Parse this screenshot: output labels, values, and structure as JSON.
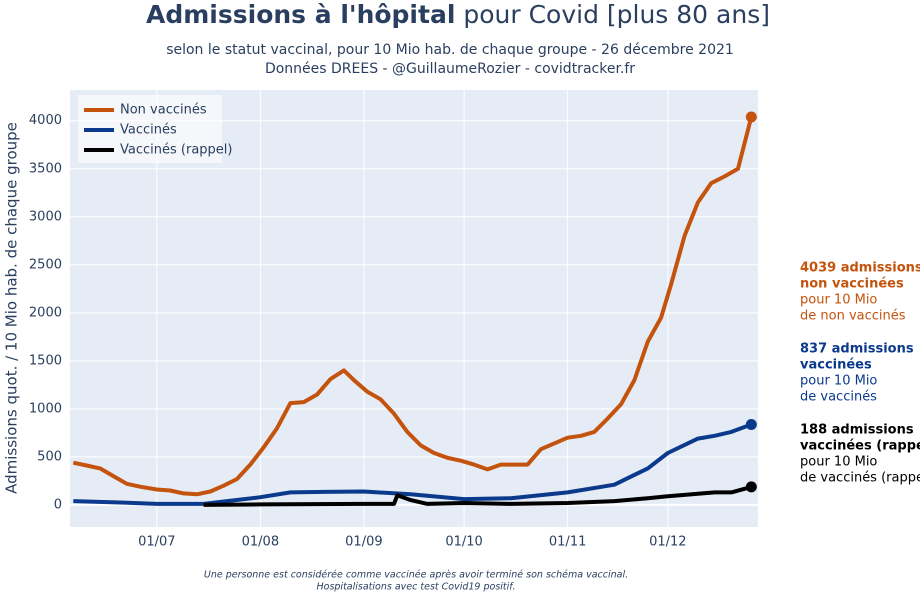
{
  "chart_data": {
    "type": "line",
    "title_bold": "Admissions à l'hôpital",
    "title_rest": "pour Covid [plus 80 ans]",
    "subtitle": [
      "selon le statut vaccinal, pour 10 Mio hab. de chaque groupe - 26 décembre 2021",
      "Données DREES - @GuillaumeRozier - covidtracker.fr"
    ],
    "y_label": "Admissions quot. / 10 Mio hab. de chaque groupe",
    "footnote": [
      "Une personne est considérée comme vaccinée après avoir terminé son schéma vaccinal.",
      "Hospitalisations avec test Covid19 positif."
    ],
    "xlim": [
      "05/06",
      "28/12"
    ],
    "xticks": [
      "01/07",
      "01/08",
      "01/09",
      "01/10",
      "01/11",
      "01/12"
    ],
    "ylim": [
      -230,
      4320
    ],
    "yticks": [
      0,
      500,
      1000,
      1500,
      2000,
      2500,
      3000,
      3500,
      4000
    ],
    "grid": true,
    "legend": "top-left",
    "series": [
      {
        "name": "Non vaccinés",
        "color": "#c4530d",
        "x": [
          "06/06",
          "10/06",
          "14/06",
          "18/06",
          "22/06",
          "26/06",
          "01/07",
          "05/07",
          "09/07",
          "13/07",
          "17/07",
          "21/07",
          "25/07",
          "29/07",
          "02/08",
          "06/08",
          "10/08",
          "14/08",
          "18/08",
          "22/08",
          "26/08",
          "29/08",
          "02/09",
          "06/09",
          "10/09",
          "14/09",
          "18/09",
          "22/09",
          "26/09",
          "30/09",
          "04/10",
          "08/10",
          "12/10",
          "16/10",
          "20/10",
          "24/10",
          "28/10",
          "01/11",
          "05/11",
          "09/11",
          "13/11",
          "17/11",
          "21/11",
          "25/11",
          "29/11",
          "02/12",
          "06/12",
          "10/12",
          "14/12",
          "18/12",
          "22/12",
          "26/12"
        ],
        "values": [
          440,
          410,
          380,
          300,
          220,
          190,
          160,
          150,
          120,
          110,
          140,
          200,
          270,
          420,
          600,
          800,
          1060,
          1070,
          1150,
          1310,
          1400,
          1300,
          1180,
          1100,
          950,
          760,
          620,
          540,
          490,
          460,
          420,
          370,
          420,
          420,
          420,
          580,
          640,
          700,
          720,
          760,
          900,
          1050,
          1300,
          1700,
          1950,
          2300,
          2800,
          3150,
          3350,
          3420,
          3500,
          4039
        ]
      },
      {
        "name": "Vaccinés",
        "color": "#0b3a8c",
        "x": [
          "06/06",
          "20/06",
          "01/07",
          "15/07",
          "01/08",
          "10/08",
          "20/08",
          "01/09",
          "15/09",
          "01/10",
          "15/10",
          "01/11",
          "15/11",
          "25/11",
          "01/12",
          "10/12",
          "15/12",
          "20/12",
          "26/12"
        ],
        "values": [
          40,
          25,
          10,
          10,
          80,
          130,
          135,
          140,
          110,
          60,
          70,
          130,
          210,
          380,
          540,
          690,
          720,
          760,
          837
        ]
      },
      {
        "name": "Vaccinés (rappel)",
        "color": "#000000",
        "x": [
          "15/07",
          "01/08",
          "01/09",
          "10/09",
          "11/09",
          "15/09",
          "20/09",
          "01/10",
          "15/10",
          "01/11",
          "15/11",
          "25/11",
          "01/12",
          "15/12",
          "20/12",
          "26/12"
        ],
        "values": [
          0,
          5,
          10,
          10,
          100,
          50,
          10,
          20,
          10,
          20,
          40,
          70,
          90,
          130,
          130,
          188
        ]
      }
    ],
    "annotations": [
      {
        "color": "#c4530d",
        "bold": [
          "4039 admissions",
          "non vaccinées"
        ],
        "regular": [
          "pour 10 Mio",
          "de non vaccinés"
        ]
      },
      {
        "color": "#0b3a8c",
        "bold": [
          "837 admissions",
          "vaccinées"
        ],
        "regular": [
          "pour 10 Mio",
          "de vaccinés"
        ]
      },
      {
        "color": "#000000",
        "bold": [
          "188 admissions",
          "vaccinées (rappel)"
        ],
        "regular": [
          "pour 10 Mio",
          "de vaccinés (rappel)"
        ]
      }
    ]
  }
}
